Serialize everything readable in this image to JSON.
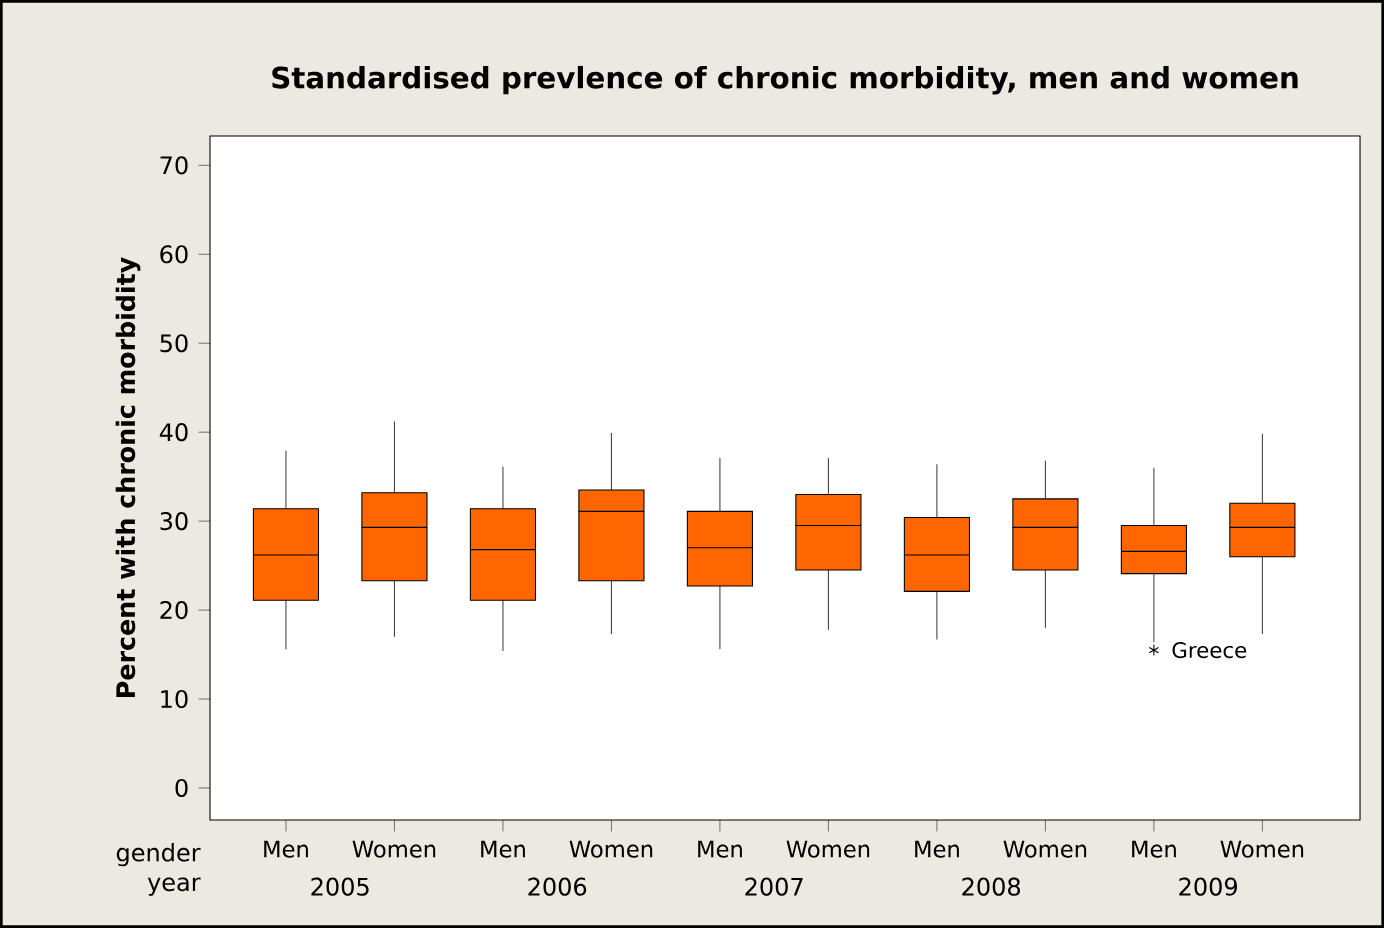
{
  "chart_data": {
    "type": "box",
    "title": "Standardised prevlence of chronic morbidity, men and women",
    "ylabel": "Percent with chronic morbidity",
    "color": "#ff6600",
    "marker": "star",
    "categories": [
      "Men",
      "Women",
      "Men",
      "Women",
      "Men",
      "Women",
      "Men",
      "Women",
      "Men",
      "Women"
    ],
    "boxes": [
      {
        "low": 15.6,
        "q1": 21.1,
        "median": 26.2,
        "q3": 31.4,
        "high": 37.9
      },
      {
        "low": 17.0,
        "q1": 23.3,
        "median": 29.3,
        "q3": 33.2,
        "high": 41.2
      },
      {
        "low": 15.4,
        "q1": 21.1,
        "median": 26.8,
        "q3": 31.4,
        "high": 36.1
      },
      {
        "low": 17.3,
        "q1": 23.3,
        "median": 31.1,
        "q3": 33.5,
        "high": 39.9
      },
      {
        "low": 15.6,
        "q1": 22.7,
        "median": 27.0,
        "q3": 31.1,
        "high": 37.1
      },
      {
        "low": 17.8,
        "q1": 24.5,
        "median": 29.5,
        "q3": 33.0,
        "high": 37.1
      },
      {
        "low": 16.7,
        "q1": 22.1,
        "median": 26.2,
        "q3": 30.4,
        "high": 36.4
      },
      {
        "low": 18.0,
        "q1": 24.5,
        "median": 29.3,
        "q3": 32.5,
        "high": 36.8
      },
      {
        "low": 16.4,
        "q1": 24.1,
        "median": 26.6,
        "q3": 29.5,
        "high": 36.0,
        "outliers": [
          15.5
        ]
      },
      {
        "low": 17.3,
        "q1": 26.0,
        "median": 29.3,
        "q3": 32.0,
        "high": 39.8
      }
    ],
    "ylim": [
      -3.6,
      73.3
    ],
    "yticks": [
      0,
      10,
      20,
      30,
      40,
      50,
      60,
      70
    ],
    "annotations": [
      "gender",
      "year",
      "2005",
      "2006",
      "2007",
      "2008",
      "2009",
      "Greece"
    ]
  }
}
